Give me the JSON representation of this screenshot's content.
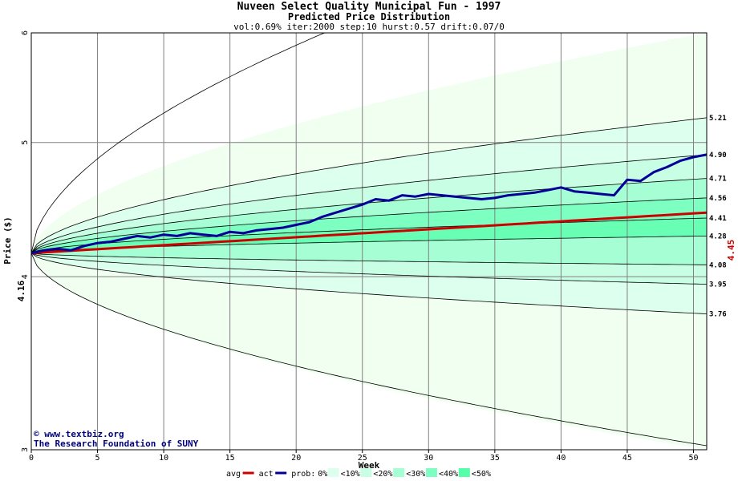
{
  "chart_data": {
    "type": "line",
    "title": "Nuveen Select Quality Municipal Fun - 1997",
    "subtitle": "Predicted Price Distribution",
    "params": "vol:0.69% iter:2000 step:10 hurst:0.57 drift:0.07/0",
    "xlabel": "Week",
    "ylabel": "Price ($)",
    "y_scale": "log",
    "xlim": [
      0,
      51
    ],
    "ylim": [
      3,
      6
    ],
    "x_ticks": [
      0,
      5,
      10,
      15,
      20,
      25,
      30,
      35,
      40,
      45,
      50
    ],
    "y_ticks": [
      3,
      4,
      5,
      6
    ],
    "start_price": "4.16",
    "end_price": "4.45",
    "bands": [
      {
        "name": "<0%",
        "color": "#f0fff0",
        "lower": 3.0,
        "upper": 6.0
      },
      {
        "name": "<10%",
        "color": "#ddffee",
        "lower": 3.76,
        "upper": 5.21
      },
      {
        "name": "<20%",
        "color": "#c8ffe4",
        "lower": 3.95,
        "upper": 4.9
      },
      {
        "name": "<30%",
        "color": "#a6ffd4",
        "lower": 4.08,
        "upper": 4.71
      },
      {
        "name": "<40%",
        "color": "#7effc2",
        "lower": 4.28,
        "upper": 4.56
      }
    ],
    "right_labels": [
      "5.21",
      "4.90",
      "4.71",
      "4.56",
      "4.41",
      "4.28",
      "4.08",
      "3.95",
      "3.76"
    ],
    "avg_series": {
      "name": "avg",
      "color": "#cc0000",
      "start": 4.16,
      "end": 4.45
    },
    "actual_series": {
      "name": "act",
      "color": "#000099",
      "x": [
        0,
        1,
        2,
        3,
        4,
        5,
        6,
        7,
        8,
        9,
        10,
        11,
        12,
        13,
        14,
        15,
        16,
        17,
        18,
        19,
        20,
        21,
        22,
        23,
        24,
        25,
        26,
        27,
        28,
        29,
        30,
        31,
        32,
        33,
        34,
        35,
        36,
        37,
        38,
        39,
        40,
        41,
        42,
        43,
        44,
        45,
        46,
        47,
        48,
        49,
        50,
        51
      ],
      "y": [
        4.16,
        4.18,
        4.19,
        4.18,
        4.21,
        4.23,
        4.24,
        4.26,
        4.28,
        4.27,
        4.29,
        4.28,
        4.3,
        4.29,
        4.28,
        4.31,
        4.3,
        4.32,
        4.33,
        4.34,
        4.36,
        4.38,
        4.42,
        4.45,
        4.48,
        4.51,
        4.55,
        4.54,
        4.58,
        4.57,
        4.59,
        4.58,
        4.57,
        4.56,
        4.55,
        4.56,
        4.58,
        4.59,
        4.6,
        4.62,
        4.64,
        4.61,
        4.6,
        4.59,
        4.58,
        4.7,
        4.69,
        4.76,
        4.8,
        4.85,
        4.88,
        4.9
      ]
    },
    "legend": [
      "avg",
      "act",
      "prob:",
      "0%",
      "<10%",
      "<20%",
      "<30%",
      "<40%",
      "<50%"
    ],
    "legend_colors": [
      "#cc0000",
      "#000099",
      "",
      "#f0fff0",
      "#ddffee",
      "#c8ffe4",
      "#a6ffd4",
      "#7effc2",
      "#55ffaa"
    ],
    "annotations": [
      "© www.textbiz.org",
      "The Research Foundation of SUNY"
    ]
  }
}
